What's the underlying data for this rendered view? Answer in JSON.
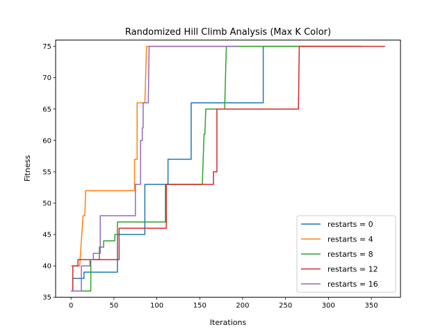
{
  "chart_data": {
    "type": "line",
    "title": "Randomized Hill Climb Analysis (Max K Color)",
    "xlabel": "Iterations",
    "ylabel": "Fitness",
    "xlim": [
      -18,
      384
    ],
    "ylim": [
      35,
      76
    ],
    "xticks": [
      0,
      50,
      100,
      150,
      200,
      250,
      300,
      350
    ],
    "yticks": [
      35,
      40,
      45,
      50,
      55,
      60,
      65,
      70,
      75
    ],
    "grid": false,
    "legend_position": "bottom-right",
    "series": [
      {
        "name": "restarts = 0",
        "color": "#1f77b4",
        "points": [
          [
            0,
            36
          ],
          [
            2,
            36
          ],
          [
            2,
            38
          ],
          [
            15,
            38
          ],
          [
            15,
            39
          ],
          [
            28,
            39
          ],
          [
            54,
            39
          ],
          [
            54,
            45
          ],
          [
            86,
            45
          ],
          [
            86,
            53
          ],
          [
            113,
            53
          ],
          [
            113,
            57
          ],
          [
            140,
            57
          ],
          [
            140,
            66
          ],
          [
            165,
            66
          ],
          [
            220,
            66
          ],
          [
            224,
            66
          ],
          [
            224,
            75
          ],
          [
            326,
            75
          ]
        ]
      },
      {
        "name": "restarts = 4",
        "color": "#ff7f0e",
        "points": [
          [
            0,
            40
          ],
          [
            10,
            40
          ],
          [
            13,
            46
          ],
          [
            14,
            48
          ],
          [
            16,
            48
          ],
          [
            17,
            52
          ],
          [
            70,
            52
          ],
          [
            74,
            52
          ],
          [
            74,
            57
          ],
          [
            77,
            57
          ],
          [
            77,
            66
          ],
          [
            86,
            66
          ],
          [
            88,
            75
          ],
          [
            290,
            75
          ]
        ]
      },
      {
        "name": "restarts = 8",
        "color": "#2ca02c",
        "points": [
          [
            0,
            36
          ],
          [
            21,
            36
          ],
          [
            23,
            36
          ],
          [
            23,
            41
          ],
          [
            33,
            41
          ],
          [
            33,
            43
          ],
          [
            38,
            43
          ],
          [
            38,
            44
          ],
          [
            51,
            44
          ],
          [
            51,
            45
          ],
          [
            54,
            45
          ],
          [
            54,
            47
          ],
          [
            110,
            47
          ],
          [
            110,
            53
          ],
          [
            152,
            53
          ],
          [
            153,
            53
          ],
          [
            155,
            61
          ],
          [
            156,
            61
          ],
          [
            157,
            65
          ],
          [
            177,
            65
          ],
          [
            179,
            65
          ],
          [
            181,
            75
          ],
          [
            340,
            75
          ]
        ]
      },
      {
        "name": "restarts = 12",
        "color": "#d62728",
        "points": [
          [
            0,
            36
          ],
          [
            2,
            36
          ],
          [
            2,
            40
          ],
          [
            8,
            40
          ],
          [
            8,
            41
          ],
          [
            50,
            41
          ],
          [
            56,
            41
          ],
          [
            56,
            46
          ],
          [
            111,
            46
          ],
          [
            111,
            53
          ],
          [
            164,
            53
          ],
          [
            166,
            53
          ],
          [
            166,
            55
          ],
          [
            170,
            55
          ],
          [
            170,
            65
          ],
          [
            265,
            65
          ],
          [
            266,
            75
          ],
          [
            366,
            75
          ]
        ]
      },
      {
        "name": "restarts = 16",
        "color": "#9467bd",
        "points": [
          [
            0,
            36
          ],
          [
            12,
            36
          ],
          [
            12,
            40
          ],
          [
            22,
            40
          ],
          [
            22,
            41
          ],
          [
            26,
            41
          ],
          [
            26,
            42
          ],
          [
            34,
            42
          ],
          [
            34,
            48
          ],
          [
            75,
            48
          ],
          [
            75,
            53
          ],
          [
            81,
            53
          ],
          [
            81,
            60
          ],
          [
            83,
            60
          ],
          [
            83,
            62
          ],
          [
            84,
            62
          ],
          [
            84,
            66
          ],
          [
            90,
            66
          ],
          [
            91,
            75
          ],
          [
            195,
            75
          ]
        ]
      }
    ]
  }
}
